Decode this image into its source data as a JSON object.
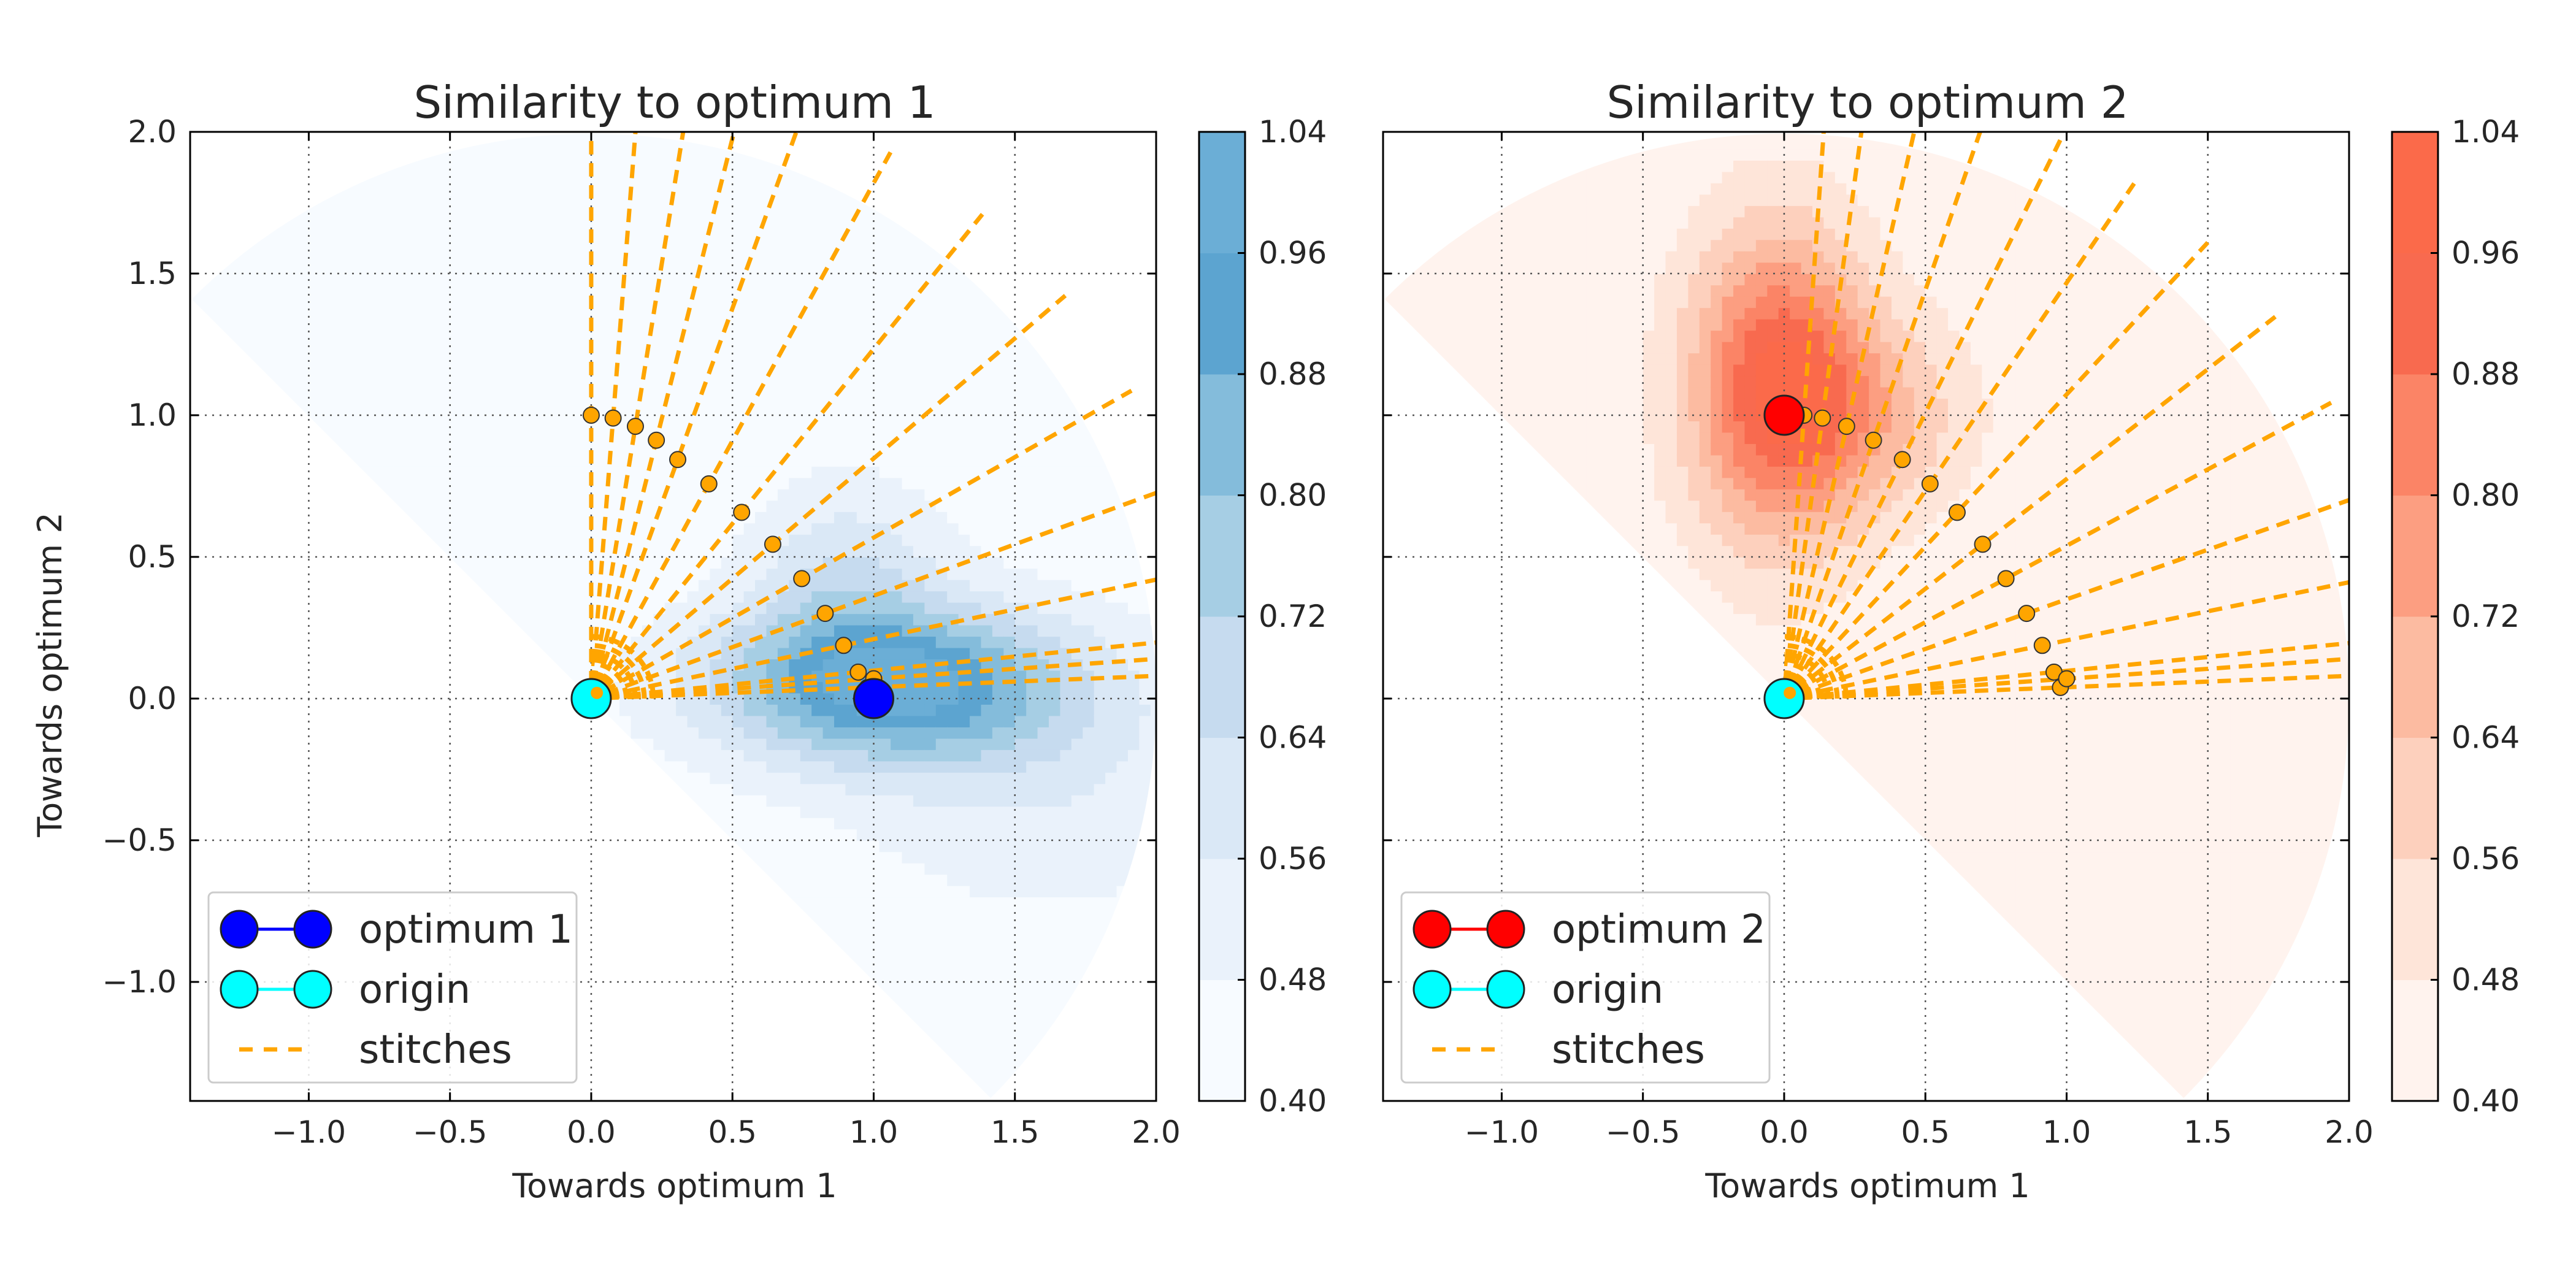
{
  "chart_data": [
    {
      "type": "contour",
      "title": "Similarity to optimum 1",
      "xlabel": "Towards optimum 1",
      "ylabel": "Towards optimum 2",
      "xlim": [
        -1.42,
        2.0
      ],
      "ylim": [
        -1.42,
        2.0
      ],
      "xticks": [
        "−1.0",
        "−0.5",
        "0.0",
        "0.5",
        "1.0",
        "1.5",
        "2.0"
      ],
      "xtick_values": [
        -1.0,
        -0.5,
        0.0,
        0.5,
        1.0,
        1.5,
        2.0
      ],
      "yticks": [
        "−1.0",
        "−0.5",
        "0.0",
        "0.5",
        "1.0",
        "1.5",
        "2.0"
      ],
      "ytick_values": [
        -1.0,
        -0.5,
        0.0,
        0.5,
        1.0,
        1.5,
        2.0
      ],
      "grid": true,
      "colormap": "Blues",
      "colorbar_ticks": [
        "0.40",
        "0.48",
        "0.56",
        "0.64",
        "0.72",
        "0.80",
        "0.88",
        "0.96",
        "1.04"
      ],
      "colorbar_values": [
        0.4,
        0.48,
        0.56,
        0.64,
        0.72,
        0.8,
        0.88,
        0.96,
        1.04
      ],
      "level_colors": [
        "#f7fbff",
        "#eaf2fb",
        "#dae8f6",
        "#c6dbef",
        "#a6cee4",
        "#84bcdb",
        "#5ca4d0",
        "#6baed6"
      ],
      "optimum": {
        "name": "optimum 1",
        "x": 1.0,
        "y": 0.0,
        "color": "#0000ff"
      },
      "origin": {
        "name": "origin",
        "x": 0.0,
        "y": 0.0,
        "color": "#00ffff"
      },
      "stitch_color": "#ffa500",
      "stitch_points": [
        [
          0.0,
          1.0
        ],
        [
          0.0775,
          0.99
        ],
        [
          0.1564,
          0.9608
        ],
        [
          0.2306,
          0.9118
        ],
        [
          0.3063,
          0.8436
        ],
        [
          0.4165,
          0.7578
        ],
        [
          0.5325,
          0.6572
        ],
        [
          0.6427,
          0.5446
        ],
        [
          0.7453,
          0.4234
        ],
        [
          0.8283,
          0.3006
        ],
        [
          0.8937,
          0.1876
        ],
        [
          0.9454,
          0.0934
        ],
        [
          0.9781,
          0.0391
        ],
        [
          1.0,
          0.07
        ]
      ],
      "legend": [
        "optimum 1",
        "origin",
        "stitches"
      ],
      "legend_loc": "lower-left"
    },
    {
      "type": "contour",
      "title": "Similarity to optimum 2",
      "xlabel": "Towards optimum 1",
      "ylabel": "",
      "xlim": [
        -1.42,
        2.0
      ],
      "ylim": [
        -1.42,
        2.0
      ],
      "xticks": [
        "−1.0",
        "−0.5",
        "0.0",
        "0.5",
        "1.0",
        "1.5",
        "2.0"
      ],
      "xtick_values": [
        -1.0,
        -0.5,
        0.0,
        0.5,
        1.0,
        1.5,
        2.0
      ],
      "yticks": [],
      "ytick_values": [
        -1.0,
        -0.5,
        0.0,
        0.5,
        1.0,
        1.5,
        2.0
      ],
      "grid": true,
      "colormap": "Reds",
      "colorbar_ticks": [
        "0.40",
        "0.48",
        "0.56",
        "0.64",
        "0.72",
        "0.80",
        "0.88",
        "0.96",
        "1.04"
      ],
      "colorbar_values": [
        0.4,
        0.48,
        0.56,
        0.64,
        0.72,
        0.8,
        0.88,
        0.96,
        1.04
      ],
      "level_colors": [
        "#fff3ee",
        "#fee5d9",
        "#fdd0bd",
        "#fcbba1",
        "#fc9e81",
        "#fb8466",
        "#f86a4f",
        "#fb6a4a"
      ],
      "optimum": {
        "name": "optimum 2",
        "x": 0.0,
        "y": 1.0,
        "color": "#ff0000"
      },
      "origin": {
        "name": "origin",
        "x": 0.0,
        "y": 0.0,
        "color": "#00ffff"
      },
      "stitch_color": "#ffa500",
      "stitch_points": [
        [
          0.07,
          1.0
        ],
        [
          0.1354,
          0.99
        ],
        [
          0.2212,
          0.9608
        ],
        [
          0.3163,
          0.9118
        ],
        [
          0.4184,
          0.8436
        ],
        [
          0.5165,
          0.7578
        ],
        [
          0.6124,
          0.6572
        ],
        [
          0.7027,
          0.5446
        ],
        [
          0.7853,
          0.4234
        ],
        [
          0.8583,
          0.3006
        ],
        [
          0.9137,
          0.1876
        ],
        [
          0.9554,
          0.0934
        ],
        [
          0.9781,
          0.0391
        ],
        [
          1.0,
          0.07
        ]
      ],
      "legend": [
        "optimum 2",
        "origin",
        "stitches"
      ],
      "legend_loc": "lower-left"
    }
  ]
}
